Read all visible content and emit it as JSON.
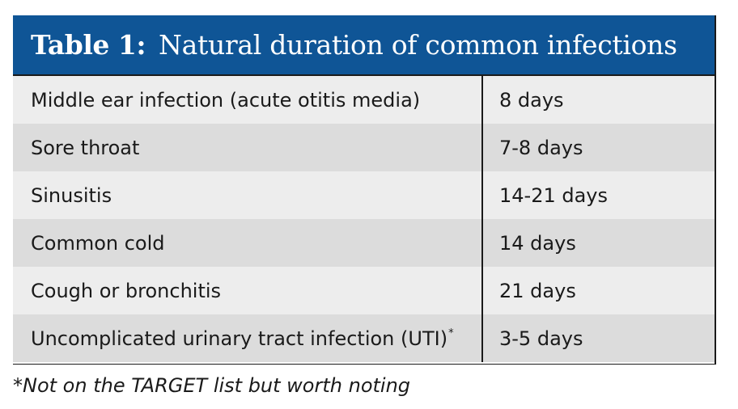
{
  "table": {
    "label": "Table 1:",
    "title": "Natural duration of common infections",
    "rows": [
      {
        "name": "Middle ear infection (acute otitis media)",
        "duration": "8 days"
      },
      {
        "name": "Sore throat",
        "duration": "7-8 days"
      },
      {
        "name": "Sinusitis",
        "duration": "14-21 days"
      },
      {
        "name": "Common cold",
        "duration": "14 days"
      },
      {
        "name": "Cough or bronchitis",
        "duration": "21 days"
      },
      {
        "name": "Uncomplicated urinary tract infection (UTI)",
        "duration": "3-5 days",
        "marker": "*"
      }
    ]
  },
  "footnote": "*Not on the TARGET list but worth noting",
  "colors": {
    "header_bg": "#0f5596",
    "row_light": "#ededed",
    "row_dark": "#dcdcdc"
  }
}
